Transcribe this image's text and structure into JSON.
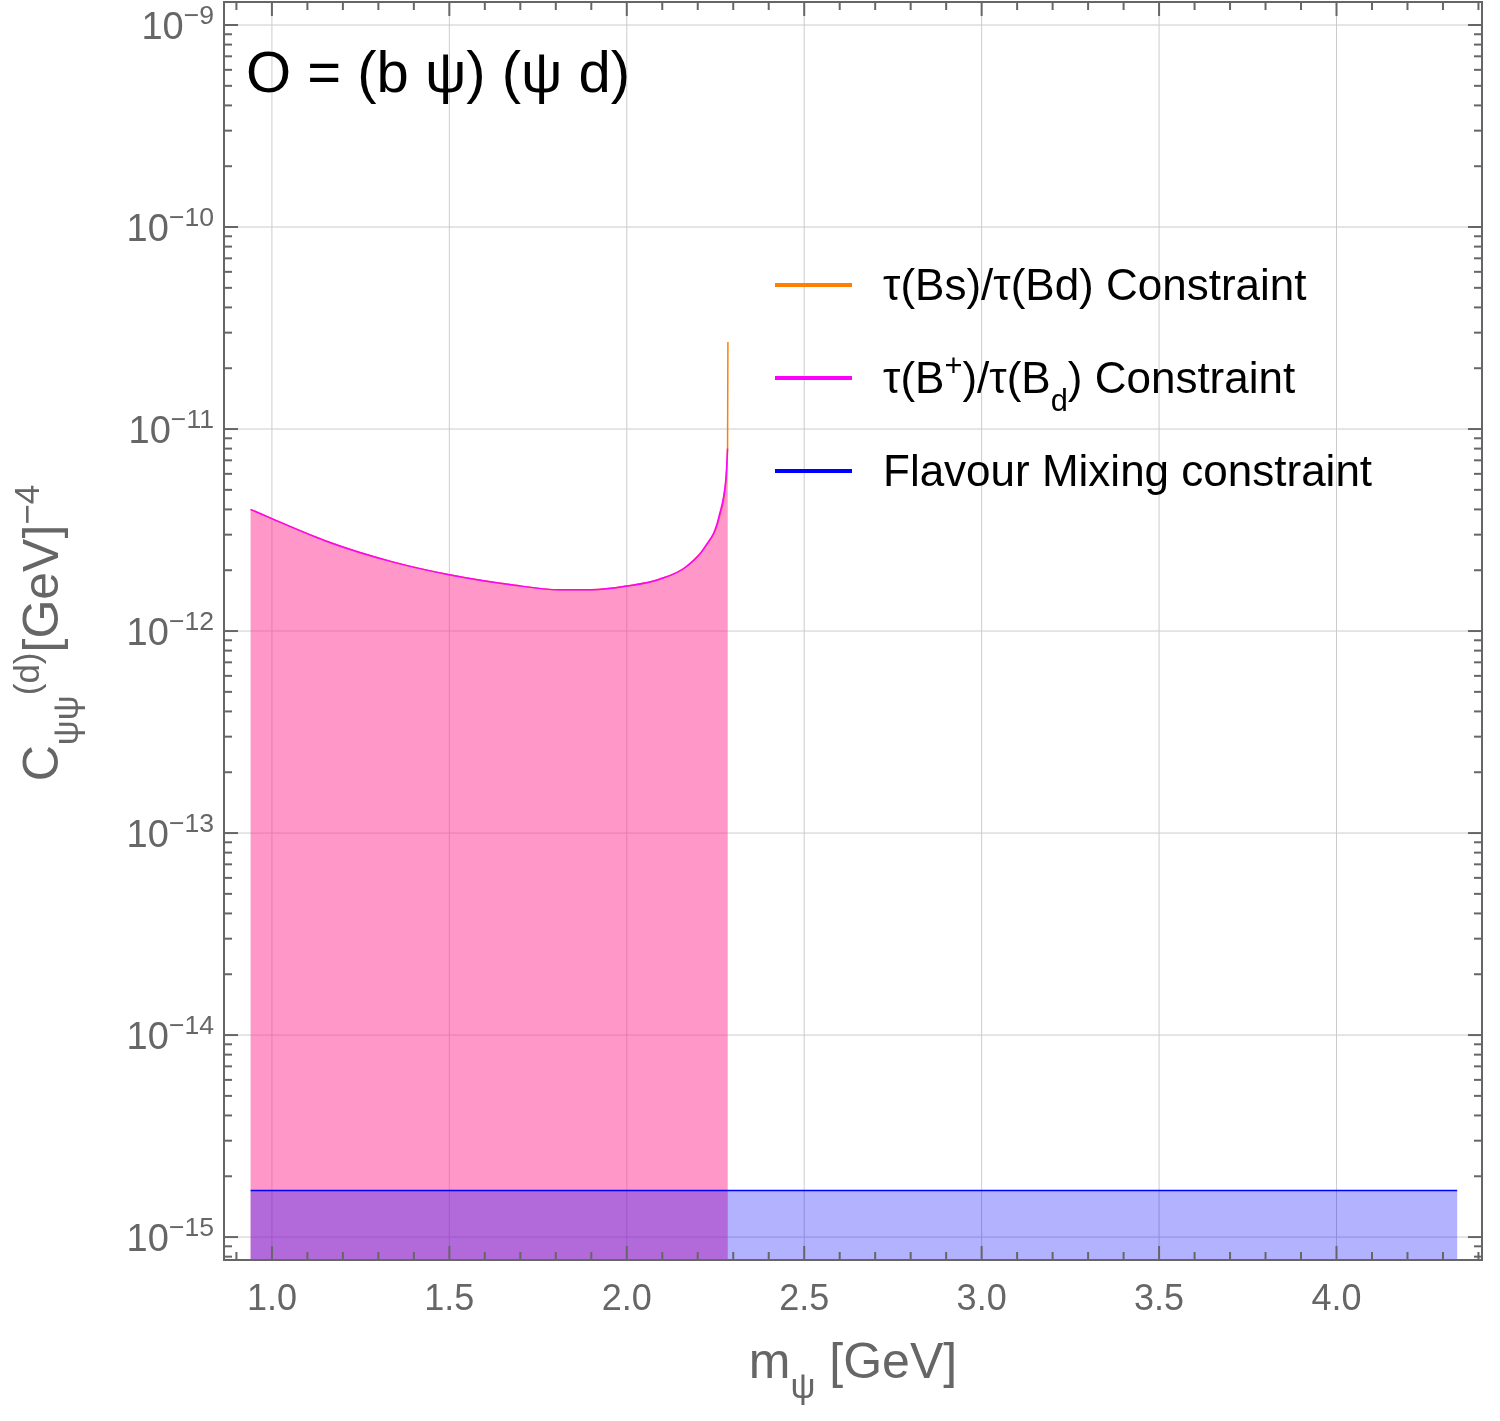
{
  "chart_data": {
    "type": "area",
    "title": "O = (b ψ) (ψ d)",
    "xlabel": "m$_{ψ}$ [GeV]",
    "ylabel": "C$_{ψψ}$$^{(d)}$[GeV]$^{−4}$",
    "log": "y",
    "grid": true,
    "legend": "top right",
    "xlim": [
      0.865,
      4.41
    ],
    "xticks": [
      {
        "value": 0.9,
        "label": null
      },
      {
        "value": 1.0,
        "label": "1.0"
      },
      {
        "value": 1.1,
        "label": null
      },
      {
        "value": 1.2,
        "label": null
      },
      {
        "value": 1.3,
        "label": null
      },
      {
        "value": 1.4,
        "label": null
      },
      {
        "value": 1.5,
        "label": "1.5"
      },
      {
        "value": 1.6,
        "label": null
      },
      {
        "value": 1.7,
        "label": null
      },
      {
        "value": 1.8,
        "label": null
      },
      {
        "value": 1.9,
        "label": null
      },
      {
        "value": 2.0,
        "label": "2.0"
      },
      {
        "value": 2.1,
        "label": null
      },
      {
        "value": 2.2,
        "label": null
      },
      {
        "value": 2.3,
        "label": null
      },
      {
        "value": 2.4,
        "label": null
      },
      {
        "value": 2.5,
        "label": "2.5"
      },
      {
        "value": 2.6,
        "label": null
      },
      {
        "value": 2.7,
        "label": null
      },
      {
        "value": 2.8,
        "label": null
      },
      {
        "value": 2.9,
        "label": null
      },
      {
        "value": 3.0,
        "label": "3.0"
      },
      {
        "value": 3.1,
        "label": null
      },
      {
        "value": 3.2,
        "label": null
      },
      {
        "value": 3.3,
        "label": null
      },
      {
        "value": 3.4,
        "label": null
      },
      {
        "value": 3.5,
        "label": "3.5"
      },
      {
        "value": 3.6,
        "label": null
      },
      {
        "value": 3.7,
        "label": null
      },
      {
        "value": 3.8,
        "label": null
      },
      {
        "value": 3.9,
        "label": null
      },
      {
        "value": 4.0,
        "label": "4.0"
      },
      {
        "value": 4.1,
        "label": null
      },
      {
        "value": 4.2,
        "label": null
      },
      {
        "value": 4.3,
        "label": null
      },
      {
        "value": 4.4,
        "label": null
      }
    ],
    "ylim": [
      7.7e-16,
      1.3e-09
    ],
    "yticks": [
      {
        "value": 8e-16,
        "label": null
      },
      {
        "value": 9e-16,
        "label": null
      },
      {
        "value": 1e-15,
        "label": "10$^{−15}$"
      },
      {
        "value": 2e-15,
        "label": null
      },
      {
        "value": 3e-15,
        "label": null
      },
      {
        "value": 4e-15,
        "label": null
      },
      {
        "value": 5e-15,
        "label": null
      },
      {
        "value": 6e-15,
        "label": null
      },
      {
        "value": 7e-15,
        "label": null
      },
      {
        "value": 8e-15,
        "label": null
      },
      {
        "value": 9e-15,
        "label": null
      },
      {
        "value": 1e-14,
        "label": "10$^{−14}$"
      },
      {
        "value": 2e-14,
        "label": null
      },
      {
        "value": 3e-14,
        "label": null
      },
      {
        "value": 4e-14,
        "label": null
      },
      {
        "value": 5e-14,
        "label": null
      },
      {
        "value": 6e-14,
        "label": null
      },
      {
        "value": 7e-14,
        "label": null
      },
      {
        "value": 8e-14,
        "label": null
      },
      {
        "value": 9e-14,
        "label": null
      },
      {
        "value": 1e-13,
        "label": "10$^{−13}$"
      },
      {
        "value": 2e-13,
        "label": null
      },
      {
        "value": 3e-13,
        "label": null
      },
      {
        "value": 4e-13,
        "label": null
      },
      {
        "value": 5e-13,
        "label": null
      },
      {
        "value": 6e-13,
        "label": null
      },
      {
        "value": 7e-13,
        "label": null
      },
      {
        "value": 8e-13,
        "label": null
      },
      {
        "value": 9e-13,
        "label": null
      },
      {
        "value": 1e-12,
        "label": "10$^{−12}$"
      },
      {
        "value": 2e-12,
        "label": null
      },
      {
        "value": 3e-12,
        "label": null
      },
      {
        "value": 4e-12,
        "label": null
      },
      {
        "value": 5e-12,
        "label": null
      },
      {
        "value": 6e-12,
        "label": null
      },
      {
        "value": 7e-12,
        "label": null
      },
      {
        "value": 8e-12,
        "label": null
      },
      {
        "value": 9e-12,
        "label": null
      },
      {
        "value": 1e-11,
        "label": "10$^{−11}$"
      },
      {
        "value": 2e-11,
        "label": null
      },
      {
        "value": 3e-11,
        "label": null
      },
      {
        "value": 4e-11,
        "label": null
      },
      {
        "value": 5e-11,
        "label": null
      },
      {
        "value": 6e-11,
        "label": null
      },
      {
        "value": 7e-11,
        "label": null
      },
      {
        "value": 8e-11,
        "label": null
      },
      {
        "value": 9e-11,
        "label": null
      },
      {
        "value": 1e-10,
        "label": "10$^{−10}$"
      },
      {
        "value": 2e-10,
        "label": null
      },
      {
        "value": 3e-10,
        "label": null
      },
      {
        "value": 4e-10,
        "label": null
      },
      {
        "value": 5e-10,
        "label": null
      },
      {
        "value": 6e-10,
        "label": null
      },
      {
        "value": 7e-10,
        "label": null
      },
      {
        "value": 8e-10,
        "label": null
      },
      {
        "value": 9e-10,
        "label": null
      },
      {
        "value": 1e-09,
        "label": "10$^{−9}$"
      }
    ],
    "series": [
      {
        "name": "τ(Bs)/τ(Bd) Constraint",
        "color": "#ff8000",
        "x": [
          0.94,
          1.0,
          1.15,
          1.34,
          1.5,
          1.67,
          1.81,
          1.9,
          2.0,
          2.09,
          2.17,
          2.22,
          2.26,
          2.279,
          2.284,
          2.285
        ],
        "values": [
          4e-12,
          3.6e-12,
          2.8e-12,
          2.2e-12,
          1.9e-12,
          1.7e-12,
          1.6e-12,
          1.6e-12,
          1.67e-12,
          1.8e-12,
          2.1e-12,
          2.6e-12,
          3.6e-12,
          5.4e-12,
          8e-12,
          2.7e-11
        ]
      },
      {
        "name": "τ(B$^{+}$)/τ(B$_{d}$) Constraint",
        "color": "#ff00ff",
        "x": [
          0.94,
          1.0,
          1.15,
          1.34,
          1.5,
          1.67,
          1.81,
          1.9,
          2.0,
          2.09,
          2.17,
          2.22,
          2.26,
          2.279,
          2.284
        ],
        "values": [
          4e-12,
          3.6e-12,
          2.8e-12,
          2.2e-12,
          1.9e-12,
          1.7e-12,
          1.6e-12,
          1.6e-12,
          1.67e-12,
          1.8e-12,
          2.1e-12,
          2.6e-12,
          3.7e-12,
          5.6e-12,
          8e-12
        ]
      },
      {
        "name": "Flavour Mixing constraint",
        "color": "#0000ff",
        "x": [
          0.94,
          4.34
        ],
        "values": [
          1.7e-15,
          1.7e-15
        ]
      }
    ]
  }
}
